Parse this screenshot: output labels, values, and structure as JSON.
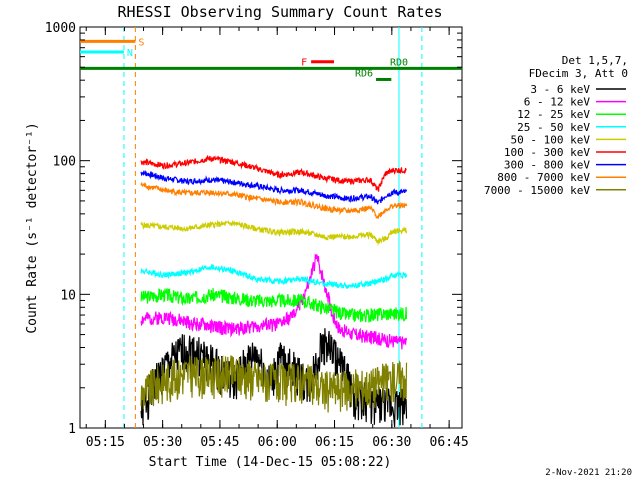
{
  "chart_data": {
    "type": "line",
    "title": "RHESSI Observing Summary Count Rates",
    "xlabel": "Start Time (14-Dec-15 05:08:22)",
    "ylabel": "Count Rate (s⁻¹ detector⁻¹)",
    "x_unit": "minutes since 05:08:22",
    "xlim": [
      0,
      100
    ],
    "ylim": [
      1,
      1000
    ],
    "y_scale": "log",
    "x_ticks": [
      {
        "value": 6.63,
        "label": "05:15"
      },
      {
        "value": 21.63,
        "label": "05:30"
      },
      {
        "value": 36.63,
        "label": "05:45"
      },
      {
        "value": 51.63,
        "label": "06:00"
      },
      {
        "value": 66.63,
        "label": "06:15"
      },
      {
        "value": 81.63,
        "label": "06:30"
      },
      {
        "value": 96.63,
        "label": "06:45"
      }
    ],
    "y_ticks": [
      {
        "value": 1,
        "label": "1"
      },
      {
        "value": 10,
        "label": "10"
      },
      {
        "value": 100,
        "label": "100"
      },
      {
        "value": 1000,
        "label": "1000"
      }
    ],
    "legend_header": [
      "Det 1,5,7,",
      "FDecim 3, Att 0"
    ],
    "legend_position": "right",
    "series": [
      {
        "name": "3 - 6 keV",
        "color": "#000000",
        "x": [
          16,
          22,
          28,
          34,
          40,
          46,
          50,
          52,
          56,
          60,
          64,
          68,
          72,
          76,
          80,
          84,
          85.5
        ],
        "y": [
          1.3,
          2.8,
          4.0,
          3.2,
          2.2,
          3.6,
          2.0,
          3.3,
          2.8,
          2.0,
          4.5,
          3.0,
          1.7,
          1.6,
          1.5,
          1.5,
          1.5
        ]
      },
      {
        "name": "6 - 12 keV",
        "color": "#ff00ff",
        "x": [
          16,
          22,
          28,
          34,
          40,
          46,
          52,
          56,
          58,
          60,
          62,
          64,
          66,
          68,
          72,
          76,
          80,
          82,
          84,
          85.5
        ],
        "y": [
          6.5,
          6.8,
          6.2,
          5.8,
          5.5,
          5.8,
          6.0,
          7.0,
          9.0,
          12.0,
          19.0,
          12.0,
          7.0,
          5.5,
          5.0,
          4.8,
          4.6,
          4.5,
          4.4,
          4.4
        ]
      },
      {
        "name": "12 - 25 keV",
        "color": "#00ff00",
        "x": [
          16,
          22,
          28,
          34,
          40,
          46,
          52,
          58,
          64,
          70,
          76,
          80,
          84,
          85.5
        ],
        "y": [
          9.5,
          10.0,
          9.2,
          10.0,
          9.5,
          9.0,
          9.0,
          9.0,
          8.0,
          7.0,
          7.0,
          7.2,
          7.2,
          7.2
        ]
      },
      {
        "name": "25 - 50 keV",
        "color": "#00ffff",
        "x": [
          16,
          22,
          28,
          34,
          40,
          46,
          52,
          58,
          64,
          70,
          76,
          80,
          82,
          84,
          85.5
        ],
        "y": [
          15,
          14,
          14.5,
          16,
          15,
          13,
          12.5,
          13,
          12,
          11.5,
          12,
          13,
          14,
          14,
          14
        ]
      },
      {
        "name": "50 - 100 keV",
        "color": "#cccc00",
        "x": [
          16,
          22,
          28,
          34,
          40,
          46,
          52,
          58,
          64,
          70,
          76,
          78,
          80,
          82,
          84,
          85.5
        ],
        "y": [
          33,
          32,
          31,
          33,
          34,
          31,
          29,
          29.5,
          27,
          27,
          28,
          25,
          26,
          30,
          30,
          30
        ]
      },
      {
        "name": "100 - 300 keV",
        "color": "#ff0000",
        "x": [
          16,
          22,
          28,
          34,
          40,
          46,
          52,
          58,
          64,
          70,
          76,
          78,
          80,
          82,
          84,
          85.5
        ],
        "y": [
          98,
          92,
          96,
          104,
          98,
          88,
          78,
          82,
          74,
          70,
          72,
          60,
          80,
          85,
          85,
          85
        ]
      },
      {
        "name": "300 - 800 keV",
        "color": "#0000ff",
        "x": [
          16,
          22,
          28,
          34,
          40,
          46,
          52,
          58,
          64,
          70,
          76,
          78,
          80,
          82,
          84,
          85.5
        ],
        "y": [
          82,
          74,
          70,
          72,
          69,
          65,
          60,
          60,
          55,
          52,
          54,
          48,
          55,
          58,
          58,
          58
        ]
      },
      {
        "name": "800 - 7000 keV",
        "color": "#ff8000",
        "x": [
          16,
          22,
          28,
          34,
          40,
          46,
          52,
          58,
          64,
          70,
          76,
          78,
          80,
          82,
          84,
          85.5
        ],
        "y": [
          66,
          60,
          57,
          58,
          56,
          52,
          49,
          49,
          44,
          42,
          44,
          38,
          43,
          46,
          46,
          46
        ]
      },
      {
        "name": "7000 - 15000 keV",
        "color": "#808000",
        "x": [
          16,
          22,
          28,
          34,
          40,
          46,
          52,
          58,
          64,
          70,
          76,
          80,
          84,
          85.5
        ],
        "y": [
          1.8,
          2.3,
          2.6,
          2.5,
          2.6,
          2.4,
          2.2,
          2.3,
          2.0,
          2.0,
          2.1,
          2.3,
          2.4,
          2.4
        ]
      }
    ],
    "annotations": [
      {
        "label": "S",
        "color": "#ff8000",
        "x0": 0,
        "x1": 14.5,
        "y": 780
      },
      {
        "label": "N",
        "color": "#00ffff",
        "x0": 0,
        "x1": 11.5,
        "y": 650
      },
      {
        "label": "F",
        "color": "#ff0000",
        "x0": 60.5,
        "x1": 66.5,
        "y": 550
      },
      {
        "label": "RD0",
        "color": "#008000",
        "x0": 0,
        "x1": 100,
        "y": 490
      },
      {
        "label": "RD6",
        "color": "#008000",
        "x0": 77.5,
        "x1": 81.5,
        "y": 405
      }
    ],
    "vertical_lines": [
      {
        "x": 11.5,
        "color": "#00ffff",
        "style": "dashed"
      },
      {
        "x": 14.5,
        "color": "#ff8000",
        "style": "dashed"
      },
      {
        "x": 89.5,
        "color": "#00ffff",
        "style": "dashed"
      },
      {
        "x": 83.5,
        "color": "#00ffff",
        "style": "solid"
      }
    ],
    "footer_date": "2-Nov-2021 21:20"
  }
}
